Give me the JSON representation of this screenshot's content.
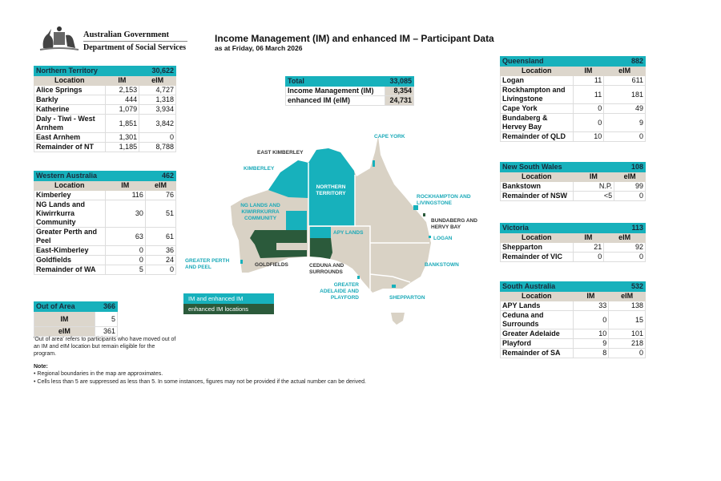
{
  "header": {
    "logo_line1": "Australian Government",
    "logo_line2": "Department of Social Services",
    "title": "Income Management (IM) and enhanced IM – Participant Data",
    "subtitle": "as at Friday, 06 March 2026"
  },
  "colors": {
    "teal": "#17b1bc",
    "dark_green": "#2b5a3b",
    "land": "#d9d2c5",
    "column_header": "#dcd6cc"
  },
  "total": {
    "label": "Total",
    "value": "33,085",
    "rows": [
      {
        "label": "Income Management (IM)",
        "value": "8,354"
      },
      {
        "label": "enhanced IM (eIM)",
        "value": "24,731"
      }
    ]
  },
  "columns": {
    "location": "Location",
    "im": "IM",
    "eim": "eIM"
  },
  "states": {
    "nt": {
      "name": "Northern Territory",
      "total": "30,622",
      "rows": [
        [
          "Alice Springs",
          "2,153",
          "4,727"
        ],
        [
          "Barkly",
          "444",
          "1,318"
        ],
        [
          "Katherine",
          "1,079",
          "3,934"
        ],
        [
          "Daly - Tiwi - West Arnhem",
          "1,851",
          "3,842"
        ],
        [
          "East Arnhem",
          "1,301",
          "0"
        ],
        [
          "Remainder of NT",
          "1,185",
          "8,788"
        ]
      ]
    },
    "wa": {
      "name": "Western Australia",
      "total": "462",
      "rows": [
        [
          "Kimberley",
          "116",
          "76"
        ],
        [
          "NG Lands and Kiwirrkurra Community",
          "30",
          "51"
        ],
        [
          "Greater Perth and Peel",
          "63",
          "61"
        ],
        [
          "East-Kimberley",
          "0",
          "36"
        ],
        [
          "Goldfields",
          "0",
          "24"
        ],
        [
          "Remainder of WA",
          "5",
          "0"
        ]
      ]
    },
    "qld": {
      "name": "Queensland",
      "total": "882",
      "rows": [
        [
          "Logan",
          "11",
          "611"
        ],
        [
          "Rockhampton and Livingstone",
          "11",
          "181"
        ],
        [
          "Cape York",
          "0",
          "49"
        ],
        [
          "Bundaberg & Hervey Bay",
          "0",
          "9"
        ],
        [
          "Remainder of QLD",
          "10",
          "0"
        ]
      ]
    },
    "nsw": {
      "name": "New South Wales",
      "total": "108",
      "rows": [
        [
          "Bankstown",
          "N.P.",
          "99"
        ],
        [
          "Remainder of NSW",
          "<5",
          "0"
        ]
      ]
    },
    "vic": {
      "name": "Victoria",
      "total": "113",
      "rows": [
        [
          "Shepparton",
          "21",
          "92"
        ],
        [
          "Remainder of VIC",
          "0",
          "0"
        ]
      ]
    },
    "sa": {
      "name": "South Australia",
      "total": "532",
      "rows": [
        [
          "APY Lands",
          "33",
          "138"
        ],
        [
          "Ceduna and Surrounds",
          "0",
          "15"
        ],
        [
          "Greater Adelaide",
          "10",
          "101"
        ],
        [
          "Playford",
          "9",
          "218"
        ],
        [
          "Remainder of SA",
          "8",
          "0"
        ]
      ]
    }
  },
  "out_of_area": {
    "name": "Out of Area",
    "total": "366",
    "rows": [
      [
        "IM",
        "5"
      ],
      [
        "eIM",
        "361"
      ]
    ],
    "description": "'Out of area' refers to participants who have moved out of an IM and eIM location but remain eligible for the program."
  },
  "notes": {
    "heading": "Note:",
    "items": [
      "• Regional boundaries in the map are approximates.",
      "• Cells less than 5 are suppressed as less than 5. In some instances, figures may not be provided if the actual number can be derived."
    ]
  },
  "legend": {
    "im_and_eim": "IM and enhanced IM",
    "eim_only": "enhanced IM locations"
  },
  "map_labels": {
    "cape_york": "CAPE YORK",
    "east_kimberley": "EAST KIMBERLEY",
    "kimberley": "KIMBERLEY",
    "northern_territory": "NORTHERN TERRITORY",
    "ng_lands": "NG LANDS AND KIWIRRKURRA COMMUNITY",
    "rockhampton": "ROCKHAMPTON AND LIVINGSTONE",
    "bundaberg": "BUNDABERG AND HERVY BAY",
    "logan": "LOGAN",
    "apy_lands": "APY LANDS",
    "greater_perth": "GREATER PERTH AND PEEL",
    "goldfields": "GOLDFIELDS",
    "ceduna": "CEDUNA AND SURROUNDS",
    "bankstown": "BANKSTOWN",
    "greater_adelaide": "GREATER ADELAIDE AND PLAYFORD",
    "shepparton": "SHEPPARTON"
  }
}
